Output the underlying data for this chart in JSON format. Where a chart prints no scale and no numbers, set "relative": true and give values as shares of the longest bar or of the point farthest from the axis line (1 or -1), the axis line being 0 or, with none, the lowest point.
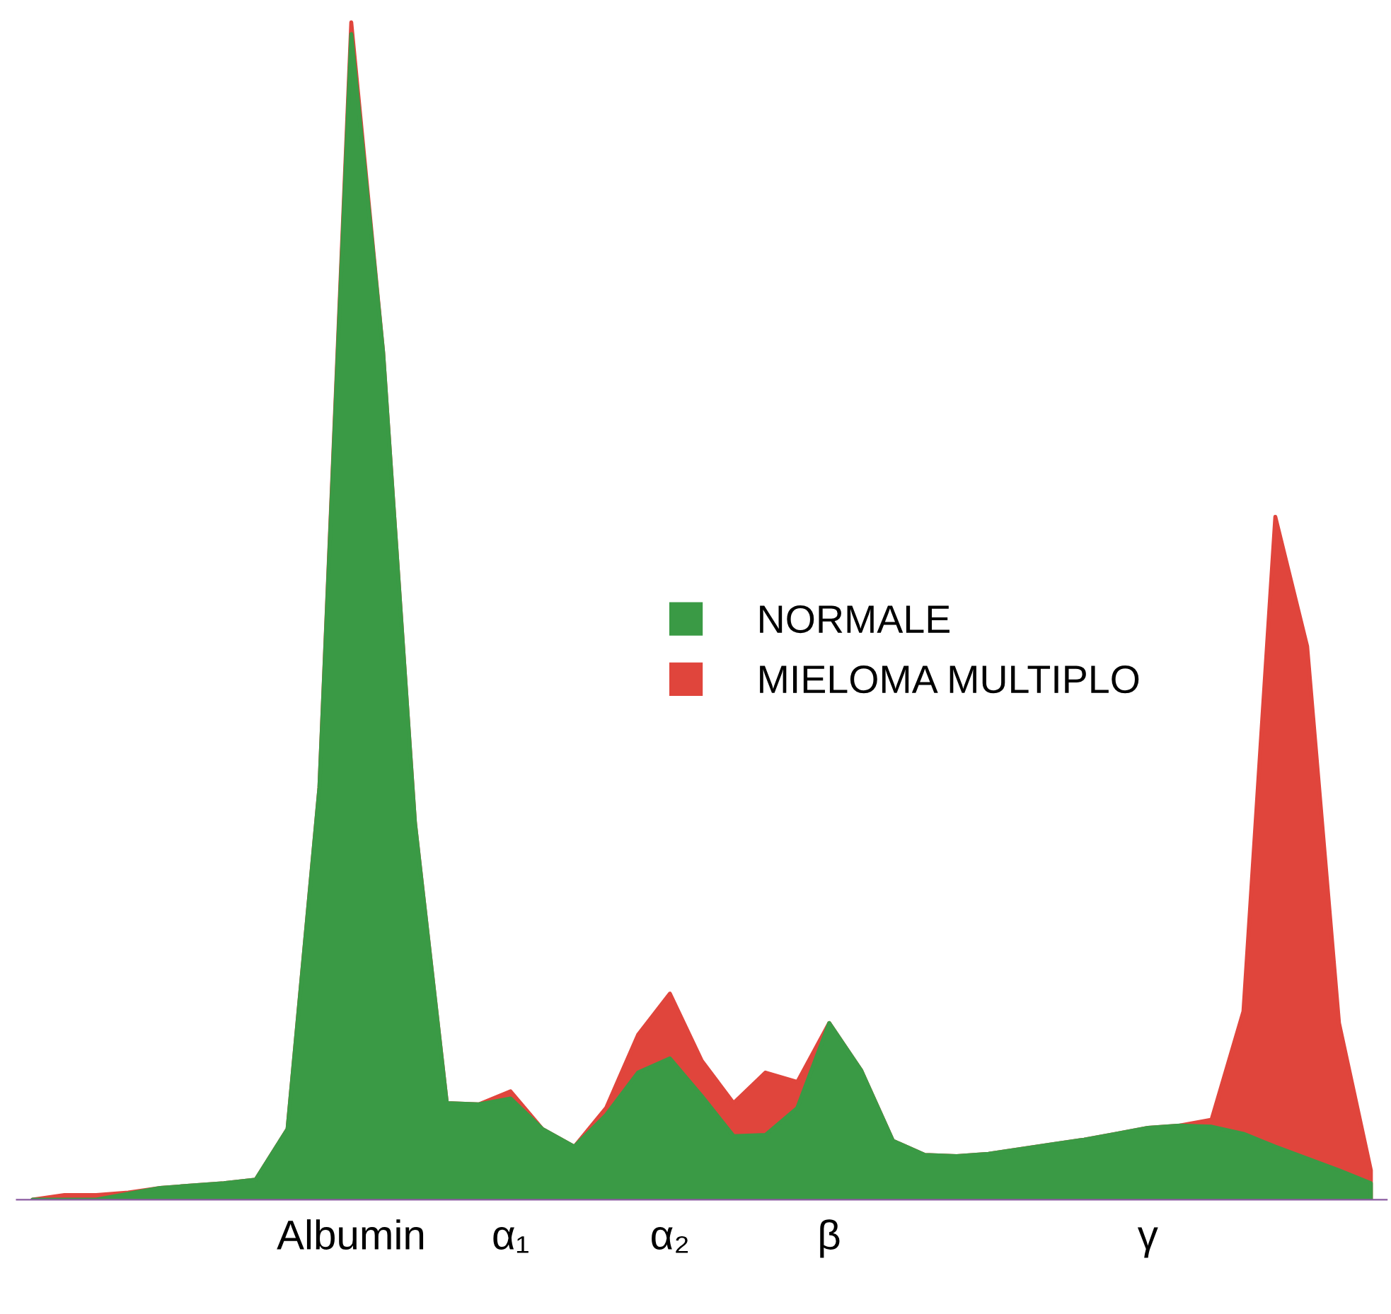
{
  "chart_data": {
    "type": "area",
    "relative": true,
    "categories": [
      null,
      null,
      null,
      null,
      null,
      null,
      null,
      null,
      null,
      null,
      "Albumin",
      null,
      null,
      null,
      null,
      "α₁",
      null,
      null,
      null,
      null,
      "α₂",
      null,
      null,
      null,
      null,
      "β",
      null,
      null,
      null,
      null,
      null,
      null,
      null,
      null,
      null,
      "γ",
      null,
      null,
      null,
      null,
      null,
      null,
      null
    ],
    "legend": "center",
    "grid": false,
    "series": [
      {
        "name": "MIELOMA MULTIPLO",
        "color": "#e0453c",
        "values": [
          0,
          0.004,
          0.004,
          0.006,
          0.01,
          0.012,
          0.014,
          0.017,
          0.06,
          0.35,
          1.0,
          0.72,
          0.32,
          0.082,
          0.081,
          0.092,
          0.06,
          0.045,
          0.078,
          0.14,
          0.175,
          0.118,
          0.082,
          0.108,
          0.1,
          0.15,
          0.11,
          0.05,
          0.038,
          0.037,
          0.039,
          0.043,
          0.047,
          0.051,
          0.056,
          0.061,
          0.063,
          0.068,
          0.16,
          0.58,
          0.47,
          0.15,
          0.025
        ]
      },
      {
        "name": "NORMALE",
        "color": "#3a9a45",
        "values": [
          0,
          0,
          0,
          0.005,
          0.01,
          0.012,
          0.014,
          0.017,
          0.06,
          0.35,
          0.99,
          0.72,
          0.32,
          0.082,
          0.081,
          0.086,
          0.06,
          0.045,
          0.072,
          0.108,
          0.12,
          0.088,
          0.054,
          0.055,
          0.078,
          0.15,
          0.11,
          0.05,
          0.038,
          0.037,
          0.039,
          0.043,
          0.047,
          0.051,
          0.056,
          0.061,
          0.063,
          0.062,
          0.056,
          0.045,
          0.035,
          0.025,
          0.014
        ]
      }
    ]
  }
}
